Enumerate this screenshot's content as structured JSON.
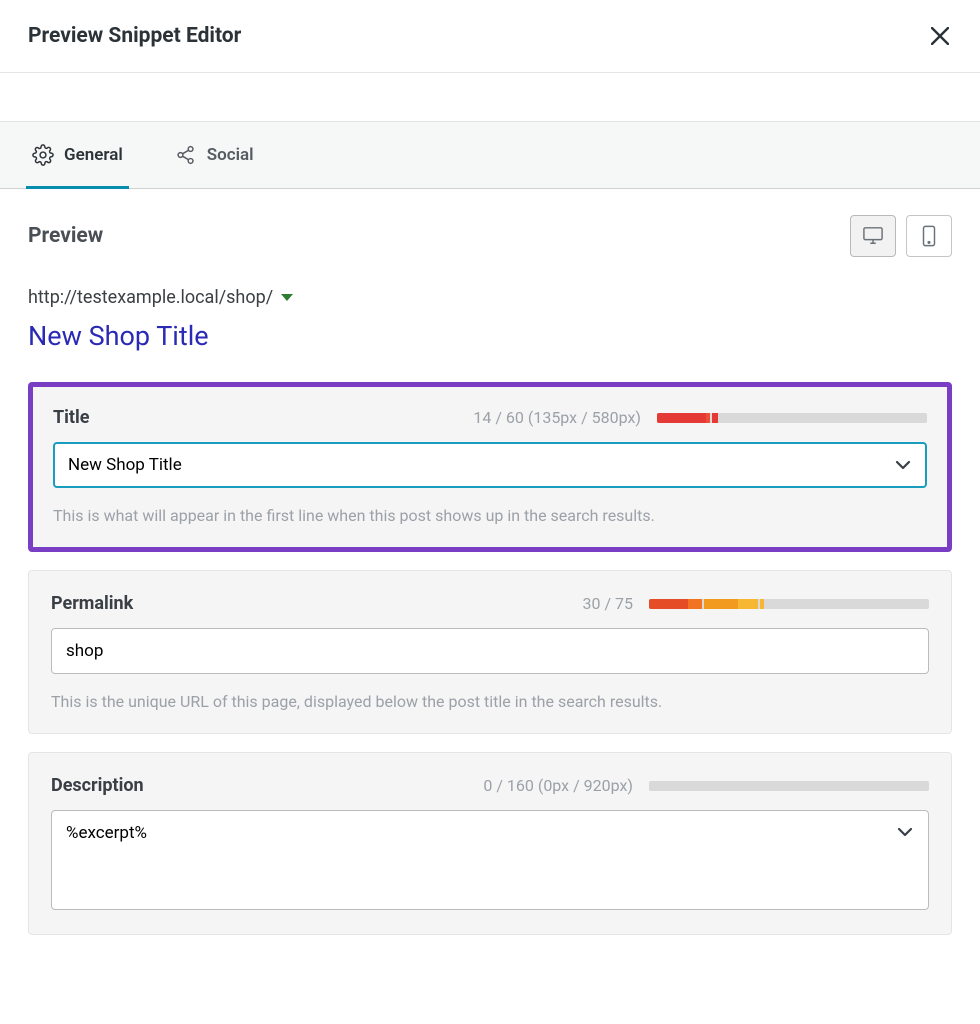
{
  "modal": {
    "title": "Preview Snippet Editor"
  },
  "tabs": {
    "general": "General",
    "social": "Social"
  },
  "preview": {
    "heading": "Preview",
    "url": "http://testexample.local/shop/",
    "title": "New Shop Title"
  },
  "title_card": {
    "label": "Title",
    "stats": "14 / 60 (135px / 580px)",
    "value": "New Shop Title",
    "help": "This is what will appear in the first line when this post shows up in the search results.",
    "progress": {
      "segments": [
        {
          "color": "#e53935",
          "width_pct": 18
        },
        {
          "color": "#ef4e3a",
          "width_pct": 1.5
        },
        {
          "color": "transparent",
          "width_pct": 1
        },
        {
          "color": "#e53935",
          "width_pct": 2
        }
      ]
    },
    "accent_border": "#7a3ec4",
    "focus_border": "#1a9cbf"
  },
  "permalink_card": {
    "label": "Permalink",
    "stats": "30 / 75",
    "value": "shop",
    "help": "This is the unique URL of this page, displayed below the post title in the search results.",
    "progress": {
      "segments": [
        {
          "color": "#e44d26",
          "width_pct": 14
        },
        {
          "color": "#f27321",
          "width_pct": 5
        },
        {
          "color": "transparent",
          "width_pct": 0.8
        },
        {
          "color": "#f29a1f",
          "width_pct": 12
        },
        {
          "color": "#f7b733",
          "width_pct": 7
        },
        {
          "color": "transparent",
          "width_pct": 0.8
        },
        {
          "color": "#f7b733",
          "width_pct": 1.4
        }
      ]
    }
  },
  "description_card": {
    "label": "Description",
    "stats": "0 / 160 (0px / 920px)",
    "value": "%excerpt%",
    "progress": {
      "segments": []
    }
  }
}
